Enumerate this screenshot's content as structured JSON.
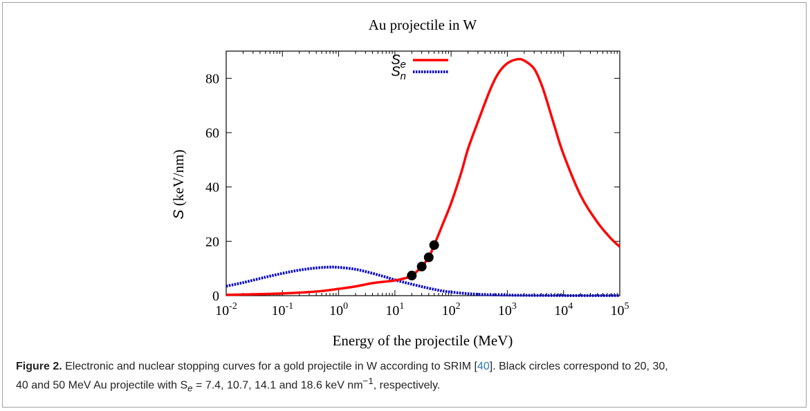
{
  "chart_data": {
    "type": "line",
    "title": "Au projectile in W",
    "xlabel": "Energy of the projectile (MeV)",
    "ylabel": "S (keV/nm)",
    "x_scale": "log",
    "xlim": [
      0.01,
      100000
    ],
    "ylim": [
      0,
      90
    ],
    "x_ticks": [
      {
        "base": "10",
        "exp": "-2",
        "value": 0.01
      },
      {
        "base": "10",
        "exp": "-1",
        "value": 0.1
      },
      {
        "base": "10",
        "exp": "0",
        "value": 1
      },
      {
        "base": "10",
        "exp": "1",
        "value": 10
      },
      {
        "base": "10",
        "exp": "2",
        "value": 100
      },
      {
        "base": "10",
        "exp": "3",
        "value": 1000
      },
      {
        "base": "10",
        "exp": "4",
        "value": 10000
      },
      {
        "base": "10",
        "exp": "5",
        "value": 100000
      }
    ],
    "y_ticks": [
      0,
      20,
      40,
      60,
      80
    ],
    "legend_position": "top-center",
    "series": [
      {
        "name": "Se",
        "label_main": "S",
        "label_sub": "e",
        "color": "#ff0000",
        "style": "solid",
        "points": [
          [
            0.01,
            0.3
          ],
          [
            0.02,
            0.4
          ],
          [
            0.05,
            0.6
          ],
          [
            0.1,
            0.8
          ],
          [
            0.2,
            1.1
          ],
          [
            0.5,
            1.7
          ],
          [
            1,
            2.5
          ],
          [
            2,
            3.4
          ],
          [
            4,
            4.6
          ],
          [
            7,
            5.2
          ],
          [
            10,
            5.6
          ],
          [
            15,
            6.4
          ],
          [
            20,
            7.4
          ],
          [
            30,
            10.7
          ],
          [
            40,
            14.1
          ],
          [
            50,
            18.6
          ],
          [
            70,
            26
          ],
          [
            100,
            34
          ],
          [
            150,
            45
          ],
          [
            200,
            54
          ],
          [
            300,
            64
          ],
          [
            500,
            76
          ],
          [
            700,
            82
          ],
          [
            1000,
            85.5
          ],
          [
            1500,
            87
          ],
          [
            2000,
            86.5
          ],
          [
            3000,
            83.5
          ],
          [
            4000,
            78
          ],
          [
            5000,
            72
          ],
          [
            7000,
            62
          ],
          [
            10000,
            52
          ],
          [
            20000,
            37
          ],
          [
            40000,
            27
          ],
          [
            70000,
            21
          ],
          [
            100000,
            18
          ]
        ]
      },
      {
        "name": "Sn",
        "label_main": "S",
        "label_sub": "n",
        "color": "#0000cc",
        "style": "dotted",
        "points": [
          [
            0.01,
            3.5
          ],
          [
            0.02,
            4.8
          ],
          [
            0.05,
            6.8
          ],
          [
            0.1,
            8.2
          ],
          [
            0.2,
            9.4
          ],
          [
            0.4,
            10.2
          ],
          [
            0.7,
            10.5
          ],
          [
            1,
            10.4
          ],
          [
            2,
            9.7
          ],
          [
            4,
            8.2
          ],
          [
            7,
            6.8
          ],
          [
            10,
            5.8
          ],
          [
            20,
            4.2
          ],
          [
            50,
            2.3
          ],
          [
            100,
            1.3
          ],
          [
            300,
            0.5
          ],
          [
            1000,
            0.2
          ],
          [
            10000,
            0.05
          ],
          [
            100000,
            0.02
          ]
        ]
      }
    ],
    "markers": {
      "color": "#000000",
      "points": [
        [
          20,
          7.4
        ],
        [
          30,
          10.7
        ],
        [
          40,
          14.1
        ],
        [
          50,
          18.6
        ]
      ]
    }
  },
  "caption": {
    "label": "Figure 2.",
    "text_1": " Electronic and nuclear stopping curves for a gold projectile in W according to SRIM [",
    "ref": "40",
    "text_2": "]. Black circles correspond to 20, 30,",
    "text_3": "40 and 50 MeV Au projectile with S",
    "text_3_sub": "e",
    "text_4": " = 7.4, 10.7, 14.1 and 18.6 keV nm",
    "text_4_sup": "−1",
    "text_5": ", respectively."
  }
}
